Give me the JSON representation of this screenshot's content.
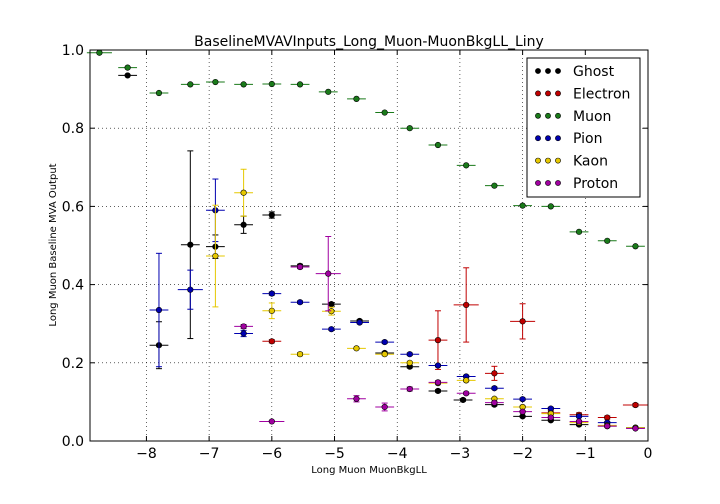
{
  "chart_data": {
    "type": "scatter",
    "title": "BaselineMVAVInputs_Long_Muon-MuonBkgLL_Liny",
    "xlabel": "Long Muon MuonBkgLL",
    "ylabel": "Long Muon Baseline MVA Output",
    "xlim": [
      -8.9,
      0
    ],
    "ylim": [
      0,
      1.0
    ],
    "xticks": [
      -8,
      -7,
      -6,
      -5,
      -4,
      -3,
      -2,
      -1,
      0
    ],
    "xtick_labels": [
      "−8",
      "−7",
      "−6",
      "−5",
      "−4",
      "−3",
      "−2",
      "−1",
      "0"
    ],
    "yticks": [
      0.0,
      0.2,
      0.4,
      0.6,
      0.8,
      1.0
    ],
    "ytick_labels": [
      "0.0",
      "0.2",
      "0.4",
      "0.6",
      "0.8",
      "1.0"
    ],
    "grid": true,
    "legend_position": "top-right",
    "series": [
      {
        "name": "Ghost",
        "color": "#000000",
        "points": [
          {
            "x": -8.3,
            "y": 0.935,
            "xerr": 0.15,
            "yerr": 0.0
          },
          {
            "x": -7.8,
            "y": 0.245,
            "xerr": 0.15,
            "yerr": 0.06
          },
          {
            "x": -7.3,
            "y": 0.502,
            "xerr": 0.15,
            "yerr": 0.24
          },
          {
            "x": -6.9,
            "y": 0.497,
            "xerr": 0.15,
            "yerr": 0.03
          },
          {
            "x": -6.45,
            "y": 0.553,
            "xerr": 0.15,
            "yerr": 0.022
          },
          {
            "x": -6.0,
            "y": 0.578,
            "xerr": 0.15,
            "yerr": 0.008
          },
          {
            "x": -5.55,
            "y": 0.448,
            "xerr": 0.15,
            "yerr": 0.004
          },
          {
            "x": -5.05,
            "y": 0.35,
            "xerr": 0.15,
            "yerr": 0.004
          },
          {
            "x": -4.6,
            "y": 0.307,
            "xerr": 0.15,
            "yerr": 0.003
          },
          {
            "x": -4.2,
            "y": 0.225,
            "xerr": 0.15,
            "yerr": 0.003
          },
          {
            "x": -3.8,
            "y": 0.19,
            "xerr": 0.15,
            "yerr": 0.003
          },
          {
            "x": -3.35,
            "y": 0.128,
            "xerr": 0.15,
            "yerr": 0.003
          },
          {
            "x": -2.95,
            "y": 0.105,
            "xerr": 0.15,
            "yerr": 0.003
          },
          {
            "x": -2.45,
            "y": 0.093,
            "xerr": 0.15,
            "yerr": 0.003
          },
          {
            "x": -2.0,
            "y": 0.063,
            "xerr": 0.15,
            "yerr": 0.002
          },
          {
            "x": -1.55,
            "y": 0.053,
            "xerr": 0.15,
            "yerr": 0.002
          },
          {
            "x": -1.1,
            "y": 0.042,
            "xerr": 0.15,
            "yerr": 0.002
          },
          {
            "x": -0.65,
            "y": 0.038,
            "xerr": 0.15,
            "yerr": 0.002
          },
          {
            "x": -0.2,
            "y": 0.034,
            "xerr": 0.15,
            "yerr": 0.002
          }
        ]
      },
      {
        "name": "Electron",
        "color": "#c00000",
        "points": [
          {
            "x": -6.0,
            "y": 0.255,
            "xerr": 0.15,
            "yerr": 0.004
          },
          {
            "x": -3.35,
            "y": 0.258,
            "xerr": 0.15,
            "yerr": 0.075
          },
          {
            "x": -2.9,
            "y": 0.348,
            "xerr": 0.2,
            "yerr": 0.095
          },
          {
            "x": -2.45,
            "y": 0.173,
            "xerr": 0.15,
            "yerr": 0.018
          },
          {
            "x": -2.0,
            "y": 0.306,
            "xerr": 0.2,
            "yerr": 0.045
          },
          {
            "x": -1.55,
            "y": 0.072,
            "xerr": 0.15,
            "yerr": 0.005
          },
          {
            "x": -1.1,
            "y": 0.067,
            "xerr": 0.15,
            "yerr": 0.005
          },
          {
            "x": -0.65,
            "y": 0.06,
            "xerr": 0.15,
            "yerr": 0.004
          },
          {
            "x": -0.2,
            "y": 0.092,
            "xerr": 0.2,
            "yerr": 0.004
          }
        ]
      },
      {
        "name": "Muon",
        "color": "#1a7a1a",
        "points": [
          {
            "x": -8.75,
            "y": 0.993,
            "xerr": 0.2,
            "yerr": 0.0
          },
          {
            "x": -8.3,
            "y": 0.955,
            "xerr": 0.15,
            "yerr": 0.0
          },
          {
            "x": -7.8,
            "y": 0.89,
            "xerr": 0.15,
            "yerr": 0.0
          },
          {
            "x": -7.3,
            "y": 0.912,
            "xerr": 0.15,
            "yerr": 0.0
          },
          {
            "x": -6.9,
            "y": 0.918,
            "xerr": 0.15,
            "yerr": 0.0
          },
          {
            "x": -6.45,
            "y": 0.912,
            "xerr": 0.15,
            "yerr": 0.0
          },
          {
            "x": -6.0,
            "y": 0.913,
            "xerr": 0.15,
            "yerr": 0.0
          },
          {
            "x": -5.55,
            "y": 0.912,
            "xerr": 0.15,
            "yerr": 0.0
          },
          {
            "x": -5.1,
            "y": 0.893,
            "xerr": 0.15,
            "yerr": 0.0
          },
          {
            "x": -4.65,
            "y": 0.875,
            "xerr": 0.15,
            "yerr": 0.0
          },
          {
            "x": -4.2,
            "y": 0.84,
            "xerr": 0.15,
            "yerr": 0.0
          },
          {
            "x": -3.8,
            "y": 0.8,
            "xerr": 0.15,
            "yerr": 0.0
          },
          {
            "x": -3.35,
            "y": 0.757,
            "xerr": 0.15,
            "yerr": 0.0
          },
          {
            "x": -2.9,
            "y": 0.705,
            "xerr": 0.15,
            "yerr": 0.0
          },
          {
            "x": -2.45,
            "y": 0.653,
            "xerr": 0.15,
            "yerr": 0.0
          },
          {
            "x": -2.0,
            "y": 0.602,
            "xerr": 0.15,
            "yerr": 0.0
          },
          {
            "x": -1.55,
            "y": 0.6,
            "xerr": 0.15,
            "yerr": 0.0
          },
          {
            "x": -1.1,
            "y": 0.535,
            "xerr": 0.15,
            "yerr": 0.0
          },
          {
            "x": -0.65,
            "y": 0.512,
            "xerr": 0.15,
            "yerr": 0.0
          },
          {
            "x": -0.2,
            "y": 0.498,
            "xerr": 0.15,
            "yerr": 0.0
          }
        ]
      },
      {
        "name": "Pion",
        "color": "#0000b0",
        "points": [
          {
            "x": -7.8,
            "y": 0.335,
            "xerr": 0.15,
            "yerr": 0.145
          },
          {
            "x": -7.3,
            "y": 0.387,
            "xerr": 0.2,
            "yerr": 0.05
          },
          {
            "x": -6.9,
            "y": 0.59,
            "xerr": 0.15,
            "yerr": 0.08
          },
          {
            "x": -6.45,
            "y": 0.275,
            "xerr": 0.15,
            "yerr": 0.008
          },
          {
            "x": -6.0,
            "y": 0.377,
            "xerr": 0.15,
            "yerr": 0.004
          },
          {
            "x": -5.55,
            "y": 0.355,
            "xerr": 0.15,
            "yerr": 0.003
          },
          {
            "x": -5.05,
            "y": 0.286,
            "xerr": 0.15,
            "yerr": 0.003
          },
          {
            "x": -4.6,
            "y": 0.303,
            "xerr": 0.15,
            "yerr": 0.003
          },
          {
            "x": -4.2,
            "y": 0.253,
            "xerr": 0.15,
            "yerr": 0.003
          },
          {
            "x": -3.8,
            "y": 0.222,
            "xerr": 0.15,
            "yerr": 0.003
          },
          {
            "x": -3.35,
            "y": 0.193,
            "xerr": 0.15,
            "yerr": 0.003
          },
          {
            "x": -2.9,
            "y": 0.165,
            "xerr": 0.15,
            "yerr": 0.003
          },
          {
            "x": -2.45,
            "y": 0.135,
            "xerr": 0.15,
            "yerr": 0.003
          },
          {
            "x": -2.0,
            "y": 0.107,
            "xerr": 0.15,
            "yerr": 0.003
          },
          {
            "x": -1.55,
            "y": 0.083,
            "xerr": 0.15,
            "yerr": 0.003
          },
          {
            "x": -1.1,
            "y": 0.063,
            "xerr": 0.15,
            "yerr": 0.002
          },
          {
            "x": -0.65,
            "y": 0.047,
            "xerr": 0.15,
            "yerr": 0.002
          },
          {
            "x": -0.2,
            "y": 0.034,
            "xerr": 0.15,
            "yerr": 0.002
          }
        ]
      },
      {
        "name": "Kaon",
        "color": "#e6c800",
        "points": [
          {
            "x": -6.9,
            "y": 0.473,
            "xerr": 0.15,
            "yerr": 0.13
          },
          {
            "x": -6.45,
            "y": 0.635,
            "xerr": 0.15,
            "yerr": 0.06
          },
          {
            "x": -6.0,
            "y": 0.333,
            "xerr": 0.15,
            "yerr": 0.02
          },
          {
            "x": -5.55,
            "y": 0.222,
            "xerr": 0.15,
            "yerr": 0.004
          },
          {
            "x": -5.05,
            "y": 0.332,
            "xerr": 0.15,
            "yerr": 0.01
          },
          {
            "x": -4.65,
            "y": 0.237,
            "xerr": 0.15,
            "yerr": 0.003
          },
          {
            "x": -4.2,
            "y": 0.222,
            "xerr": 0.15,
            "yerr": 0.003
          },
          {
            "x": -3.8,
            "y": 0.2,
            "xerr": 0.15,
            "yerr": 0.003
          },
          {
            "x": -3.35,
            "y": 0.148,
            "xerr": 0.15,
            "yerr": 0.003
          },
          {
            "x": -2.9,
            "y": 0.155,
            "xerr": 0.15,
            "yerr": 0.003
          },
          {
            "x": -2.45,
            "y": 0.108,
            "xerr": 0.15,
            "yerr": 0.003
          },
          {
            "x": -2.0,
            "y": 0.087,
            "xerr": 0.15,
            "yerr": 0.003
          },
          {
            "x": -1.55,
            "y": 0.07,
            "xerr": 0.15,
            "yerr": 0.003
          },
          {
            "x": -1.1,
            "y": 0.047,
            "xerr": 0.15,
            "yerr": 0.002
          },
          {
            "x": -0.65,
            "y": 0.04,
            "xerr": 0.15,
            "yerr": 0.002
          },
          {
            "x": -0.2,
            "y": 0.034,
            "xerr": 0.15,
            "yerr": 0.002
          }
        ]
      },
      {
        "name": "Proton",
        "color": "#a000a0",
        "points": [
          {
            "x": -6.45,
            "y": 0.293,
            "xerr": 0.15,
            "yerr": 0.005
          },
          {
            "x": -6.0,
            "y": 0.05,
            "xerr": 0.2,
            "yerr": 0.0
          },
          {
            "x": -5.55,
            "y": 0.445,
            "xerr": 0.15,
            "yerr": 0.004
          },
          {
            "x": -5.1,
            "y": 0.428,
            "xerr": 0.2,
            "yerr": 0.095
          },
          {
            "x": -4.65,
            "y": 0.108,
            "xerr": 0.15,
            "yerr": 0.008
          },
          {
            "x": -4.2,
            "y": 0.087,
            "xerr": 0.15,
            "yerr": 0.01
          },
          {
            "x": -3.8,
            "y": 0.133,
            "xerr": 0.15,
            "yerr": 0.005
          },
          {
            "x": -3.35,
            "y": 0.15,
            "xerr": 0.15,
            "yerr": 0.004
          },
          {
            "x": -2.9,
            "y": 0.122,
            "xerr": 0.15,
            "yerr": 0.003
          },
          {
            "x": -2.45,
            "y": 0.098,
            "xerr": 0.15,
            "yerr": 0.003
          },
          {
            "x": -2.0,
            "y": 0.075,
            "xerr": 0.15,
            "yerr": 0.003
          },
          {
            "x": -1.55,
            "y": 0.06,
            "xerr": 0.15,
            "yerr": 0.002
          },
          {
            "x": -1.1,
            "y": 0.05,
            "xerr": 0.15,
            "yerr": 0.002
          },
          {
            "x": -0.65,
            "y": 0.038,
            "xerr": 0.15,
            "yerr": 0.002
          },
          {
            "x": -0.2,
            "y": 0.032,
            "xerr": 0.15,
            "yerr": 0.002
          }
        ]
      }
    ]
  }
}
